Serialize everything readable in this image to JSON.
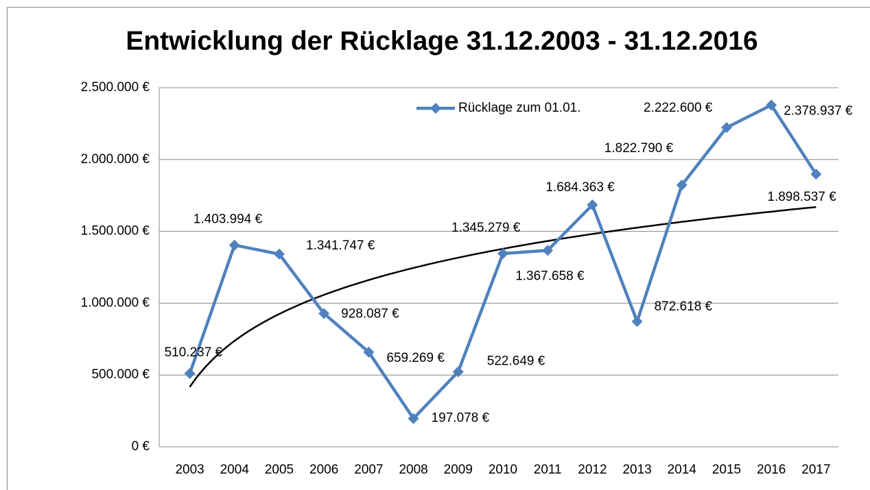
{
  "chart_data": {
    "type": "line",
    "title": "Entwicklung der Rücklage 31.12.2003 - 31.12.2016",
    "categories": [
      "2003",
      "2004",
      "2005",
      "2006",
      "2007",
      "2008",
      "2009",
      "2010",
      "2011",
      "2012",
      "2013",
      "2014",
      "2015",
      "2016",
      "2017"
    ],
    "series": [
      {
        "name": "Rücklage zum 01.01.",
        "color": "#4f81bd",
        "values": [
          510237,
          1403994,
          1341747,
          928087,
          659269,
          197078,
          522649,
          1345279,
          1367658,
          1684363,
          872618,
          1822790,
          2222600,
          2378937,
          1898537
        ],
        "value_labels": [
          "510.237 €",
          "1.403.994 €",
          "1.341.747 €",
          "928.087 €",
          "659.269 €",
          "197.078 €",
          "522.649 €",
          "1.345.279 €",
          "1.367.658 €",
          "1.684.363 €",
          "872.618 €",
          "1.822.790 €",
          "2.222.600 €",
          "2.378.937 €",
          "1.898.537 €"
        ]
      }
    ],
    "trendline": "logarithmic",
    "trendline_color": "#000000",
    "ylim": [
      0,
      2500000
    ],
    "yticks": [
      {
        "value": 0,
        "label": "0 €"
      },
      {
        "value": 500000,
        "label": "500.000 €"
      },
      {
        "value": 1000000,
        "label": "1.000.000 €"
      },
      {
        "value": 1500000,
        "label": "1.500.000 €"
      },
      {
        "value": 2000000,
        "label": "2.000.000 €"
      },
      {
        "value": 2500000,
        "label": "2.500.000 €"
      }
    ],
    "grid": true,
    "legend": "top"
  }
}
